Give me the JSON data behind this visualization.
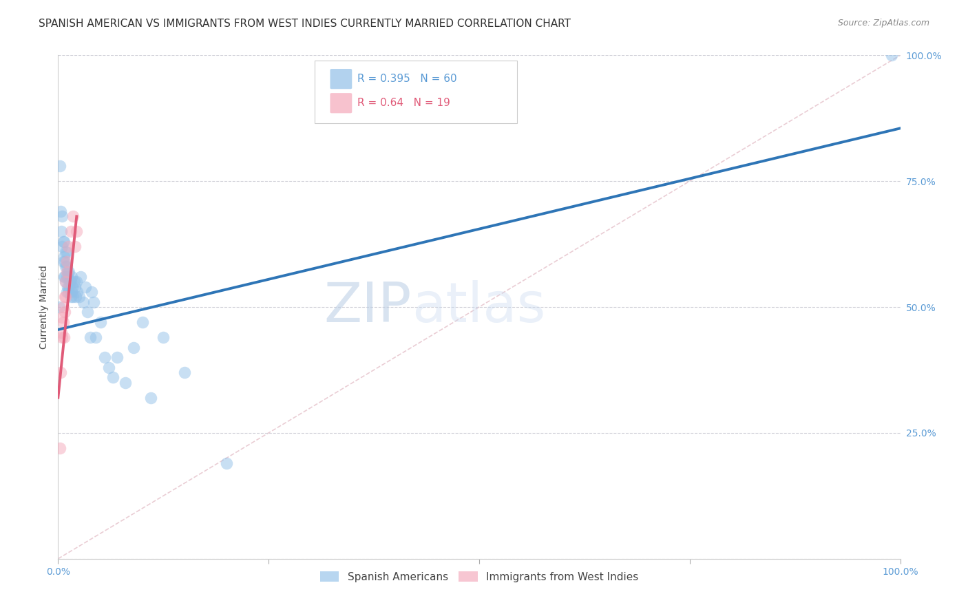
{
  "title": "SPANISH AMERICAN VS IMMIGRANTS FROM WEST INDIES CURRENTLY MARRIED CORRELATION CHART",
  "source": "Source: ZipAtlas.com",
  "tick_color": "#5b9bd5",
  "ylabel": "Currently Married",
  "watermark_zip": "ZIP",
  "watermark_atlas": "atlas",
  "R_blue": 0.395,
  "N_blue": 60,
  "R_pink": 0.64,
  "N_pink": 19,
  "blue_label": "Spanish Americans",
  "pink_label": "Immigrants from West Indies",
  "blue_color": "#92c0e8",
  "pink_color": "#f4a8ba",
  "blue_line_color": "#2e75b6",
  "pink_line_color": "#e05a78",
  "diagonal_color": "#e8c8d0",
  "blue_points_x": [
    0.001,
    0.002,
    0.003,
    0.004,
    0.005,
    0.005,
    0.006,
    0.006,
    0.007,
    0.007,
    0.007,
    0.008,
    0.008,
    0.009,
    0.009,
    0.009,
    0.01,
    0.01,
    0.01,
    0.01,
    0.011,
    0.011,
    0.012,
    0.012,
    0.013,
    0.013,
    0.014,
    0.015,
    0.015,
    0.016,
    0.016,
    0.017,
    0.018,
    0.019,
    0.02,
    0.021,
    0.022,
    0.023,
    0.025,
    0.027,
    0.03,
    0.032,
    0.035,
    0.038,
    0.04,
    0.042,
    0.045,
    0.05,
    0.055,
    0.06,
    0.065,
    0.07,
    0.08,
    0.09,
    0.1,
    0.11,
    0.125,
    0.15,
    0.2,
    0.99
  ],
  "blue_points_y": [
    0.5,
    0.78,
    0.69,
    0.65,
    0.62,
    0.68,
    0.59,
    0.63,
    0.56,
    0.6,
    0.63,
    0.56,
    0.59,
    0.55,
    0.58,
    0.61,
    0.53,
    0.56,
    0.58,
    0.61,
    0.54,
    0.57,
    0.53,
    0.56,
    0.54,
    0.57,
    0.55,
    0.52,
    0.55,
    0.53,
    0.56,
    0.54,
    0.52,
    0.55,
    0.54,
    0.52,
    0.55,
    0.53,
    0.52,
    0.56,
    0.51,
    0.54,
    0.49,
    0.44,
    0.53,
    0.51,
    0.44,
    0.47,
    0.4,
    0.38,
    0.36,
    0.4,
    0.35,
    0.42,
    0.47,
    0.32,
    0.44,
    0.37,
    0.19,
    1.0
  ],
  "pink_points_x": [
    0.002,
    0.003,
    0.004,
    0.005,
    0.005,
    0.006,
    0.006,
    0.007,
    0.008,
    0.008,
    0.009,
    0.009,
    0.01,
    0.01,
    0.012,
    0.015,
    0.018,
    0.02,
    0.022
  ],
  "pink_points_y": [
    0.22,
    0.37,
    0.45,
    0.48,
    0.44,
    0.5,
    0.47,
    0.44,
    0.52,
    0.49,
    0.55,
    0.52,
    0.59,
    0.57,
    0.62,
    0.65,
    0.68,
    0.62,
    0.65
  ],
  "blue_line_x0": 0.0,
  "blue_line_x1": 1.0,
  "blue_line_y0": 0.455,
  "blue_line_y1": 0.855,
  "pink_line_x0": 0.0,
  "pink_line_x1": 0.022,
  "pink_line_y0": 0.32,
  "pink_line_y1": 0.68,
  "xlim": [
    0.0,
    1.0
  ],
  "ylim": [
    0.0,
    1.0
  ],
  "xticks": [
    0.0,
    0.25,
    0.5,
    0.75,
    1.0
  ],
  "yticks": [
    0.0,
    0.25,
    0.5,
    0.75,
    1.0
  ],
  "grid_color": "#d0d0d8",
  "background_color": "#ffffff",
  "title_fontsize": 11,
  "axis_label_fontsize": 10,
  "tick_fontsize": 10,
  "legend_fontsize": 11
}
